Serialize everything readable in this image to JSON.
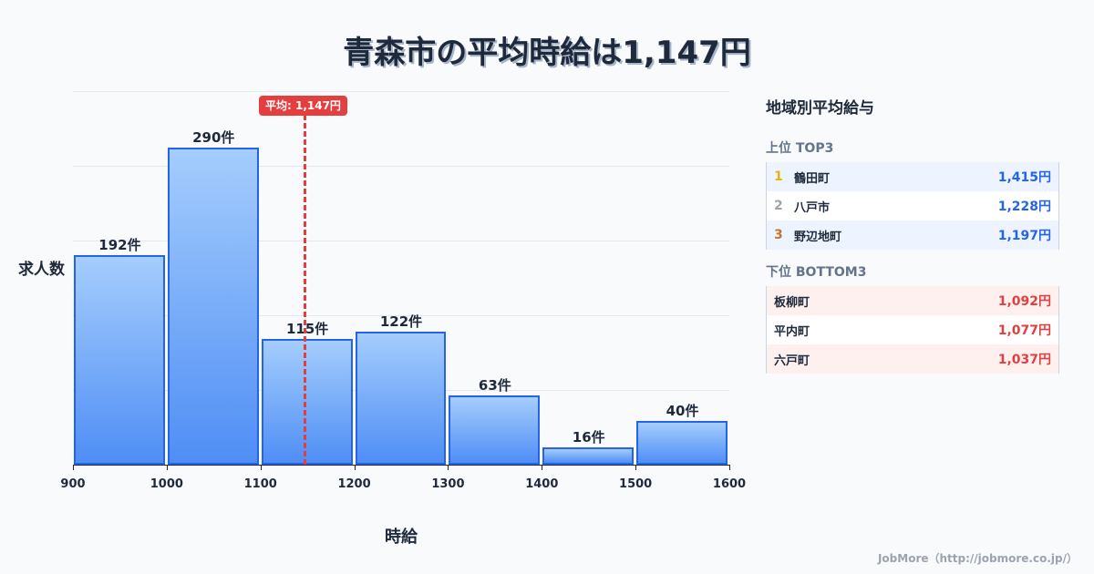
{
  "title": "青森市の平均時給は1,147円",
  "chart_data": {
    "type": "bar",
    "title": "青森市の平均時給は1,147円",
    "xlabel": "時給",
    "ylabel": "求人数",
    "categories": [
      "900-1000",
      "1000-1100",
      "1100-1200",
      "1200-1300",
      "1300-1400",
      "1400-1500",
      "1500-1600"
    ],
    "x_ticks": [
      "900",
      "1000",
      "1100",
      "1200",
      "1300",
      "1400",
      "1500",
      "1600"
    ],
    "values": [
      192,
      290,
      115,
      122,
      63,
      16,
      40
    ],
    "value_labels": [
      "192件",
      "290件",
      "115件",
      "122件",
      "63件",
      "16件",
      "40件"
    ],
    "xlim": [
      900,
      1600
    ],
    "grid": true,
    "average_marker": {
      "value": 1147,
      "label": "平均: 1,147円"
    }
  },
  "panel": {
    "title": "地域別平均給与",
    "top_title": "上位 TOP3",
    "top": [
      {
        "rank": "1",
        "name": "鶴田町",
        "value": "1,415円",
        "rank_color": "#eab308"
      },
      {
        "rank": "2",
        "name": "八戸市",
        "value": "1,228円",
        "rank_color": "#9ca3af"
      },
      {
        "rank": "3",
        "name": "野辺地町",
        "value": "1,197円",
        "rank_color": "#c2762b"
      }
    ],
    "bottom_title": "下位 BOTTOM3",
    "bottom": [
      {
        "name": "板柳町",
        "value": "1,092円"
      },
      {
        "name": "平内町",
        "value": "1,077円"
      },
      {
        "name": "六戸町",
        "value": "1,037円"
      }
    ]
  },
  "footer": "JobMore（http://jobmore.co.jp/）"
}
